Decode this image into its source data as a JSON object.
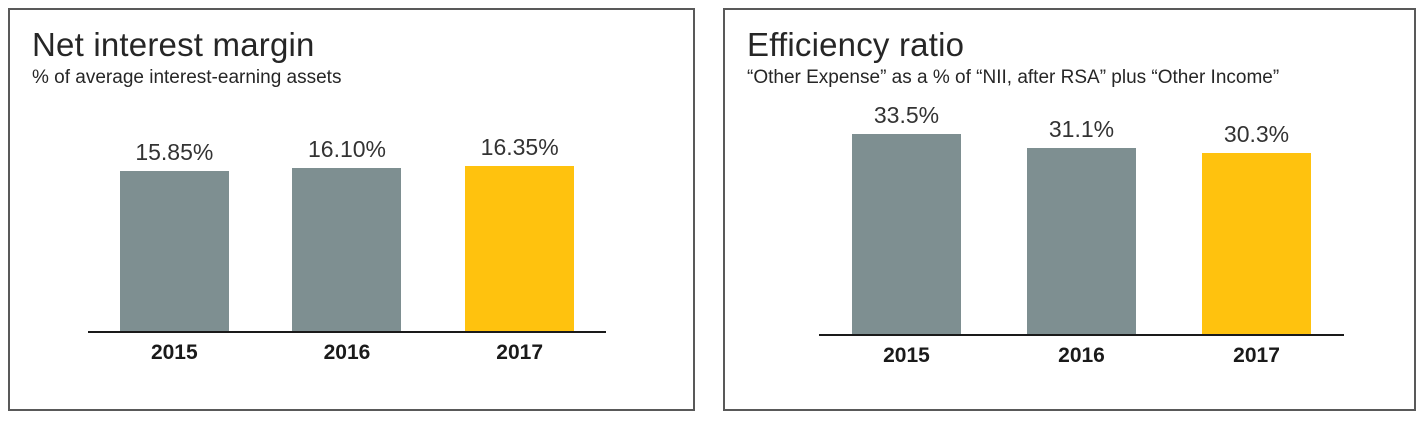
{
  "chart_data": [
    {
      "type": "bar",
      "title": "Net interest margin",
      "subtitle": "% of average interest-earning assets",
      "categories": [
        "2015",
        "2016",
        "2017"
      ],
      "values": [
        15.85,
        16.1,
        16.35
      ],
      "value_labels": [
        "15.85%",
        "16.10%",
        "16.35%"
      ],
      "bar_colors": [
        "#7E8F91",
        "#7E8F91",
        "#FFC20E"
      ],
      "ylim": [
        0,
        17
      ],
      "grid": false,
      "legend": "none",
      "baseline_color": "#1a1a1a"
    },
    {
      "type": "bar",
      "title": "Efficiency ratio",
      "subtitle": "“Other Expense” as a % of “NII, after RSA” plus “Other Income”",
      "categories": [
        "2015",
        "2016",
        "2017"
      ],
      "values": [
        33.5,
        31.1,
        30.3
      ],
      "value_labels": [
        "33.5%",
        "31.1%",
        "30.3%"
      ],
      "bar_colors": [
        "#7E8F91",
        "#7E8F91",
        "#FFC20E"
      ],
      "ylim": [
        0,
        35
      ],
      "grid": false,
      "legend": "none",
      "baseline_color": "#1a1a1a"
    }
  ]
}
